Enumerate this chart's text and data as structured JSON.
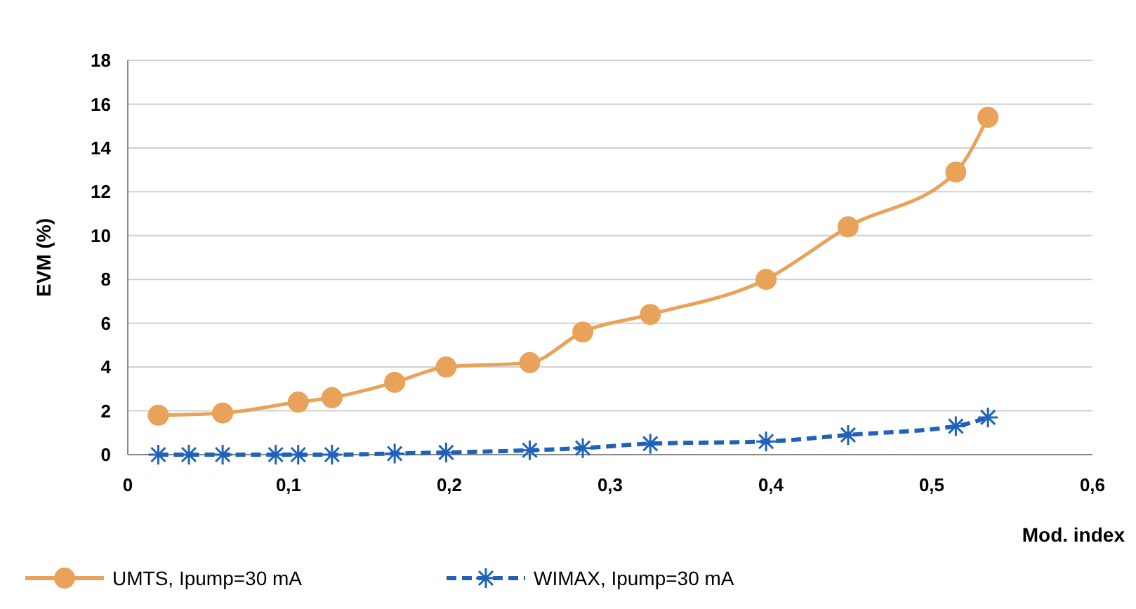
{
  "chart_data": {
    "type": "line",
    "xlabel": "Mod. index",
    "ylabel": "EVM (%)",
    "xlim": [
      0,
      0.6
    ],
    "xticks": [
      0,
      {
        "value": 0.1,
        "label": "0,1"
      },
      {
        "value": 0.2,
        "label": "0,2"
      },
      {
        "value": 0.3,
        "label": "0,3"
      },
      {
        "value": 0.4,
        "label": "0,4"
      },
      {
        "value": 0.5,
        "label": "0,5"
      },
      {
        "value": 0.6,
        "label": "0,6"
      }
    ],
    "ylim": [
      0,
      18
    ],
    "yticks": [
      0,
      2,
      4,
      6,
      8,
      10,
      12,
      14,
      16,
      18
    ],
    "grid": "y",
    "legend": "bottom",
    "series": [
      {
        "name": "UMTS, Ipump=30 mA",
        "color": "#e8a25a",
        "marker": "circle",
        "line_style": "solid",
        "x": [
          0.019,
          0.059,
          0.106,
          0.127,
          0.166,
          0.198,
          0.25,
          0.283,
          0.325,
          0.397,
          0.448,
          0.515,
          0.535
        ],
        "values": [
          1.8,
          1.9,
          2.4,
          2.6,
          3.3,
          4.0,
          4.2,
          5.6,
          6.4,
          8.0,
          10.4,
          12.9,
          15.4
        ]
      },
      {
        "name": "WIMAX, Ipump=30 mA",
        "color": "#1f62b8",
        "marker": "cross",
        "line_style": "dashed",
        "x": [
          0.019,
          0.038,
          0.059,
          0.092,
          0.106,
          0.127,
          0.166,
          0.198,
          0.25,
          0.283,
          0.325,
          0.397,
          0.448,
          0.515,
          0.535
        ],
        "values": [
          0,
          0,
          0,
          0,
          0,
          0,
          0.05,
          0.1,
          0.2,
          0.3,
          0.5,
          0.6,
          0.9,
          1.3,
          1.7
        ]
      }
    ]
  }
}
